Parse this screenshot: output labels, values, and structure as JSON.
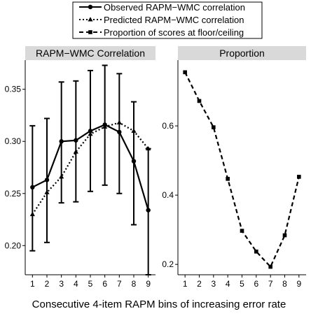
{
  "legend": {
    "items": [
      {
        "label": "Observed RAPM−WMC correlation",
        "style": "solid",
        "marker": "circle"
      },
      {
        "label": "Predicted RAPM−WMC correlation",
        "style": "dotted",
        "marker": "triangle"
      },
      {
        "label": "Proportion of scores at floor/ceiling",
        "style": "dashed",
        "marker": "square"
      }
    ]
  },
  "xlabel": "Consecutive 4-item RAPM bins of increasing error rate",
  "colors": {
    "strip_bg": "#d9d9d9",
    "line": "#000000",
    "axis": "#000000"
  },
  "chart_data": [
    {
      "type": "line",
      "title": "RAPM−WMC Correlation",
      "x": [
        1,
        2,
        3,
        4,
        5,
        6,
        7,
        8,
        9
      ],
      "xlim": [
        0.5,
        9.5
      ],
      "ylim": [
        0.172,
        0.378
      ],
      "yticks": [
        0.2,
        0.25,
        0.3,
        0.35
      ],
      "ytick_labels": [
        "0.20",
        "0.25",
        "0.30",
        "0.35"
      ],
      "series": [
        {
          "name": "Observed RAPM−WMC correlation",
          "style": "solid",
          "marker": "circle",
          "values": [
            0.256,
            0.263,
            0.3,
            0.301,
            0.31,
            0.316,
            0.309,
            0.281,
            0.234
          ],
          "error_low": [
            0.195,
            0.203,
            0.241,
            0.242,
            0.252,
            0.258,
            0.25,
            0.22,
            0.172
          ],
          "error_high": [
            0.315,
            0.322,
            0.357,
            0.358,
            0.368,
            0.373,
            0.365,
            0.338,
            0.293
          ]
        },
        {
          "name": "Predicted RAPM−WMC correlation",
          "style": "dotted",
          "marker": "triangle",
          "values": [
            0.23,
            0.251,
            0.266,
            0.29,
            0.307,
            0.314,
            0.318,
            0.31,
            0.293
          ]
        }
      ]
    },
    {
      "type": "line",
      "title": "Proportion",
      "x": [
        1,
        2,
        3,
        4,
        5,
        6,
        7,
        8,
        9
      ],
      "xlim": [
        0.5,
        9.5
      ],
      "ylim": [
        0.17,
        0.79
      ],
      "yticks": [
        0.2,
        0.4,
        0.6
      ],
      "ytick_labels": [
        "0.2",
        "0.4",
        "0.6"
      ],
      "series": [
        {
          "name": "Proportion of scores at floor/ceiling",
          "style": "dashed",
          "marker": "square",
          "values": [
            0.755,
            0.672,
            0.596,
            0.447,
            0.297,
            0.237,
            0.193,
            0.284,
            0.453
          ]
        }
      ]
    }
  ]
}
